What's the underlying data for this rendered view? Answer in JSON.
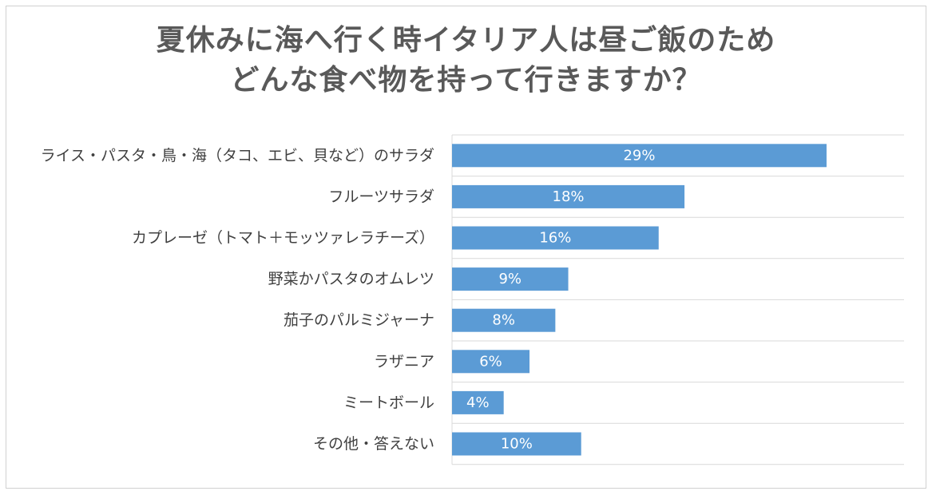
{
  "chart_data": {
    "type": "bar",
    "orientation": "horizontal",
    "title_lines": [
      "夏休みに海へ行く時イタリア人は昼ご飯のため",
      "どんな食べ物を持って行きますか？"
    ],
    "categories": [
      "ライス・パスタ・鳥・海（タコ、エビ、貝など）のサラダ",
      "フルーツサラダ",
      "カプレーゼ（トマト＋モッツァレラチーズ）",
      "野菜かパスタのオムレツ",
      "茄子のパルミジャーナ",
      "ラザニア",
      "ミートボール",
      "その他・答えない"
    ],
    "values": [
      29,
      18,
      16,
      9,
      8,
      6,
      4,
      10
    ],
    "data_labels": [
      "29%",
      "18%",
      "16%",
      "9%",
      "8%",
      "6%",
      "4%",
      "10%"
    ],
    "unit": "%",
    "xlim": [
      0,
      35
    ],
    "grid": true,
    "legend": "none",
    "bar_color": "#5b9bd5"
  }
}
